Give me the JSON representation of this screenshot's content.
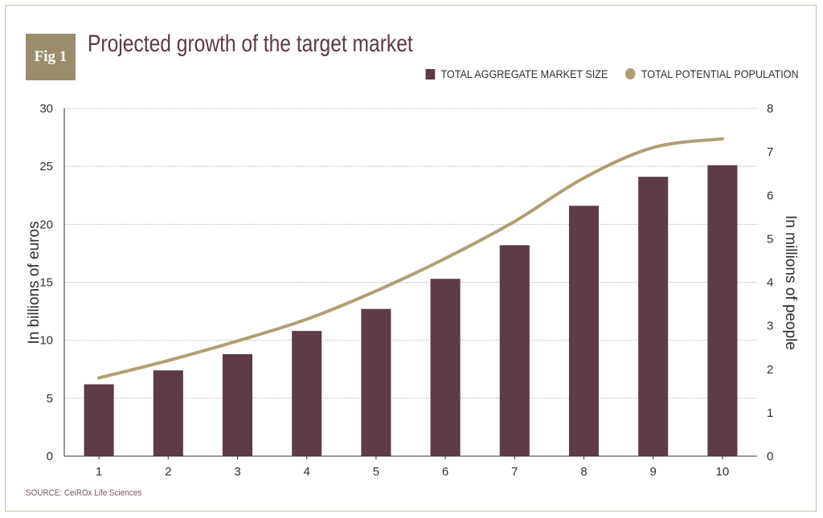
{
  "badge": "Fig 1",
  "title": "Projected growth of the target market",
  "legend": {
    "bar_label": "TOTAL AGGREGATE MARKET SIZE",
    "line_label": "TOTAL POTENTIAL POPULATION"
  },
  "source": "SOURCE: CeiROx Life Sciences",
  "colors": {
    "bar": "#5e3b45",
    "line": "#b09e75",
    "title": "#5c3a43",
    "badge": "#9a8d6b"
  },
  "chart_data": {
    "type": "bar",
    "title": "Projected growth of the target market",
    "categories": [
      "1",
      "2",
      "3",
      "4",
      "5",
      "6",
      "7",
      "8",
      "9",
      "10"
    ],
    "series": [
      {
        "name": "TOTAL AGGREGATE MARKET SIZE",
        "type": "bar",
        "axis": "left",
        "values": [
          6.2,
          7.4,
          8.8,
          10.8,
          12.7,
          15.3,
          18.2,
          21.6,
          24.1,
          25.1
        ]
      },
      {
        "name": "TOTAL POTENTIAL POPULATION",
        "type": "line",
        "axis": "right",
        "values": [
          1.8,
          2.2,
          2.65,
          3.15,
          3.8,
          4.55,
          5.4,
          6.4,
          7.1,
          7.3
        ]
      }
    ],
    "ylabel_left": "In billions of euros",
    "ylabel_right": "In millions of people",
    "ylim_left": [
      0,
      30
    ],
    "ylim_right": [
      0,
      8
    ],
    "yticks_left": [
      0,
      5,
      10,
      15,
      20,
      25,
      30
    ],
    "yticks_right": [
      0,
      1,
      2,
      3,
      4,
      5,
      6,
      7,
      8
    ],
    "grid": true,
    "legend_position": "top-right"
  }
}
